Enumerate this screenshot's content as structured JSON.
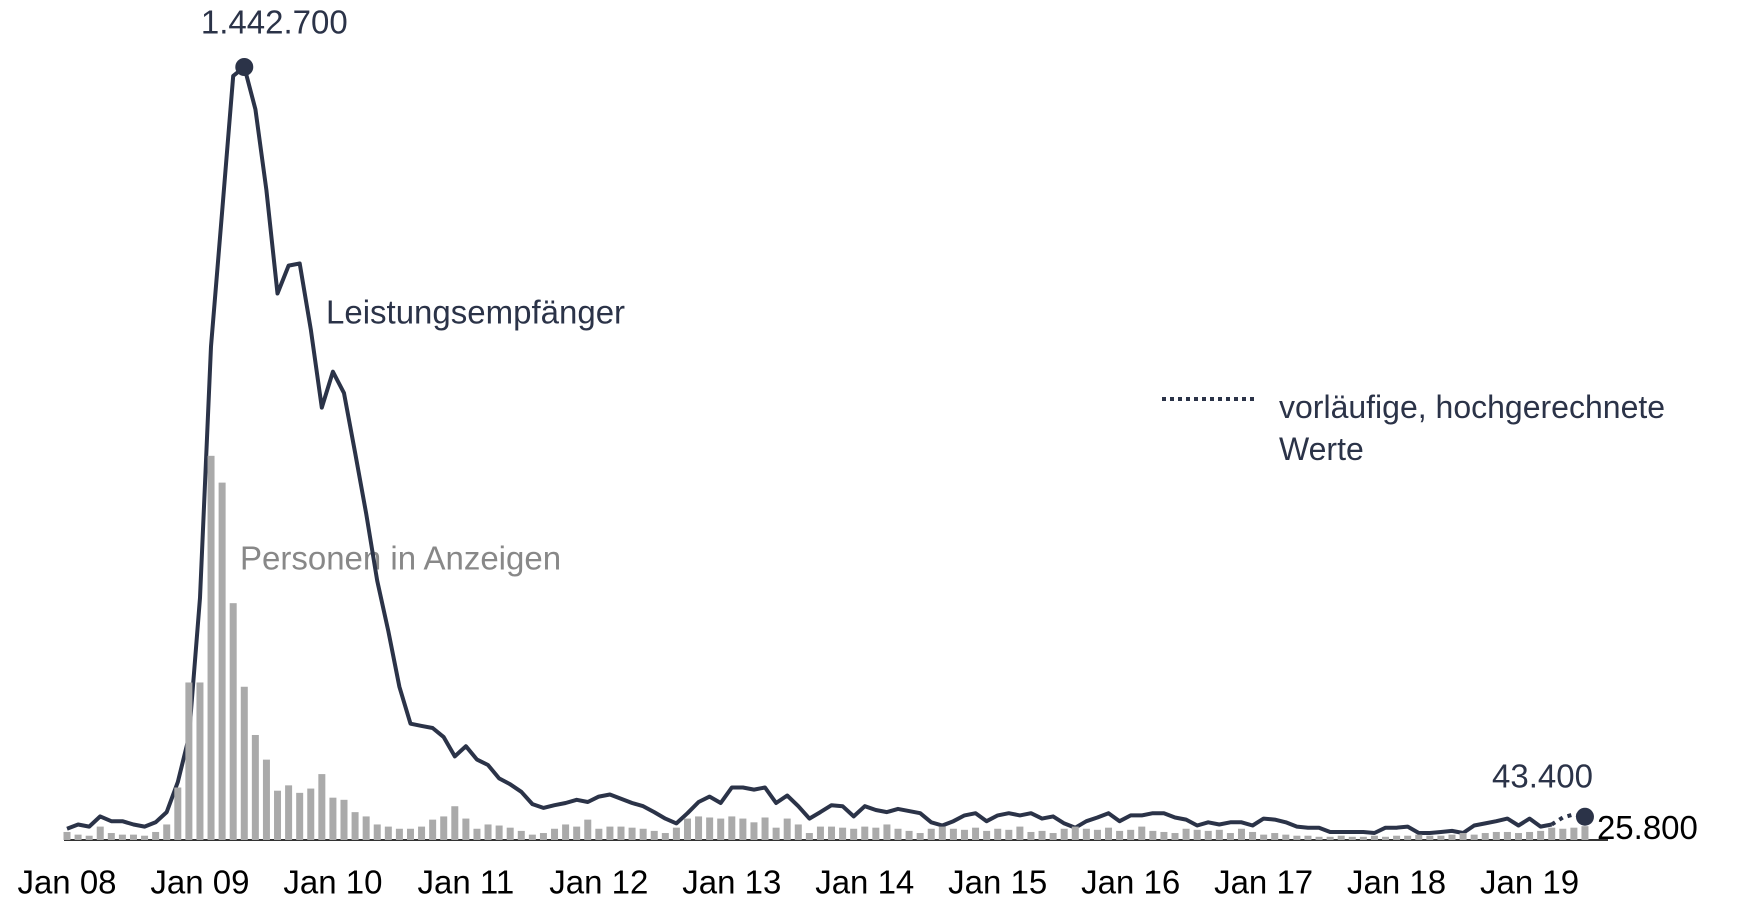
{
  "chart_data": {
    "type": "combo",
    "categories": [
      "Jan 08",
      null,
      null,
      null,
      null,
      null,
      null,
      null,
      null,
      null,
      null,
      null,
      "Jan 09",
      null,
      null,
      null,
      null,
      null,
      null,
      null,
      null,
      null,
      null,
      null,
      "Jan 10",
      null,
      null,
      null,
      null,
      null,
      null,
      null,
      null,
      null,
      null,
      null,
      "Jan 11",
      null,
      null,
      null,
      null,
      null,
      null,
      null,
      null,
      null,
      null,
      null,
      "Jan 12",
      null,
      null,
      null,
      null,
      null,
      null,
      null,
      null,
      null,
      null,
      null,
      "Jan 13",
      null,
      null,
      null,
      null,
      null,
      null,
      null,
      null,
      null,
      null,
      null,
      "Jan 14",
      null,
      null,
      null,
      null,
      null,
      null,
      null,
      null,
      null,
      null,
      null,
      "Jan 15",
      null,
      null,
      null,
      null,
      null,
      null,
      null,
      null,
      null,
      null,
      null,
      "Jan 16",
      null,
      null,
      null,
      null,
      null,
      null,
      null,
      null,
      null,
      null,
      null,
      "Jan 17",
      null,
      null,
      null,
      null,
      null,
      null,
      null,
      null,
      null,
      null,
      null,
      "Jan 18",
      null,
      null,
      null,
      null,
      null,
      null,
      null,
      null,
      null,
      null,
      null,
      "Jan 19",
      null,
      null,
      null,
      null,
      null
    ],
    "ylim": [
      0,
      1442700
    ],
    "series": [
      {
        "name": "Leistungsempfänger",
        "type": "line",
        "color": "#2b3348",
        "values": [
          21000,
          29000,
          25000,
          44000,
          35000,
          35000,
          29000,
          25000,
          33000,
          52000,
          108000,
          192000,
          452000,
          921000,
          1172000,
          1426000,
          1442700,
          1364000,
          1213000,
          1020000,
          1072000,
          1076000,
          953000,
          807000,
          874000,
          834000,
          723000,
          609000,
          484000,
          390000,
          286000,
          217000,
          213000,
          209000,
          192000,
          156000,
          175000,
          150000,
          140000,
          115000,
          104000,
          90000,
          67000,
          60000,
          65000,
          69000,
          75000,
          71000,
          81000,
          85000,
          77000,
          69000,
          63000,
          52000,
          40000,
          31000,
          50000,
          71000,
          81000,
          69000,
          98000,
          98000,
          94000,
          98000,
          69000,
          83000,
          63000,
          40000,
          52000,
          65000,
          63000,
          44000,
          63000,
          56000,
          52000,
          58000,
          54000,
          50000,
          33000,
          27000,
          35000,
          46000,
          50000,
          35000,
          46000,
          50000,
          46000,
          50000,
          40000,
          44000,
          31000,
          23000,
          35000,
          42000,
          50000,
          35000,
          46000,
          46000,
          50000,
          50000,
          42000,
          38000,
          27000,
          33000,
          29000,
          33000,
          33000,
          27000,
          40000,
          38000,
          33000,
          25000,
          23000,
          23000,
          15000,
          15000,
          15000,
          15000,
          13000,
          23000,
          23000,
          25000,
          13000,
          13000,
          15000,
          17000,
          13000,
          27000,
          31000,
          35000,
          40000,
          27000,
          40000,
          25000,
          29000,
          null,
          null,
          null
        ],
        "value_labels": {
          "16": "1.442.700"
        }
      },
      {
        "name": "vorläufige, hochgerechnete Werte",
        "type": "line",
        "style": "dotted",
        "color": "#2b3348",
        "values": [
          null,
          null,
          null,
          null,
          null,
          null,
          null,
          null,
          null,
          null,
          null,
          null,
          null,
          null,
          null,
          null,
          null,
          null,
          null,
          null,
          null,
          null,
          null,
          null,
          null,
          null,
          null,
          null,
          null,
          null,
          null,
          null,
          null,
          null,
          null,
          null,
          null,
          null,
          null,
          null,
          null,
          null,
          null,
          null,
          null,
          null,
          null,
          null,
          null,
          null,
          null,
          null,
          null,
          null,
          null,
          null,
          null,
          null,
          null,
          null,
          null,
          null,
          null,
          null,
          null,
          null,
          null,
          null,
          null,
          null,
          null,
          null,
          null,
          null,
          null,
          null,
          null,
          null,
          null,
          null,
          null,
          null,
          null,
          null,
          null,
          null,
          null,
          null,
          null,
          null,
          null,
          null,
          null,
          null,
          null,
          null,
          null,
          null,
          null,
          null,
          null,
          null,
          null,
          null,
          null,
          null,
          null,
          null,
          null,
          null,
          null,
          null,
          null,
          null,
          null,
          null,
          null,
          null,
          null,
          null,
          null,
          null,
          null,
          null,
          null,
          null,
          null,
          null,
          null,
          null,
          null,
          null,
          null,
          null,
          29000,
          42000,
          48000,
          43400
        ],
        "value_labels": {
          "137": "43.400"
        }
      },
      {
        "name": "Personen in Anzeigen",
        "type": "bar",
        "color": "#aaaaaa",
        "values": [
          15000,
          10000,
          8000,
          25000,
          13000,
          10000,
          10000,
          8000,
          15000,
          29000,
          98000,
          294000,
          294000,
          717000,
          667000,
          442000,
          286000,
          196000,
          150000,
          92000,
          102000,
          88000,
          96000,
          123000,
          79000,
          75000,
          52000,
          44000,
          29000,
          25000,
          21000,
          21000,
          25000,
          38000,
          44000,
          63000,
          40000,
          21000,
          29000,
          27000,
          23000,
          17000,
          10000,
          13000,
          21000,
          29000,
          25000,
          38000,
          21000,
          25000,
          25000,
          23000,
          21000,
          17000,
          13000,
          23000,
          40000,
          44000,
          42000,
          40000,
          44000,
          40000,
          33000,
          42000,
          23000,
          40000,
          29000,
          13000,
          25000,
          25000,
          23000,
          21000,
          25000,
          23000,
          29000,
          21000,
          17000,
          13000,
          21000,
          25000,
          21000,
          19000,
          23000,
          17000,
          21000,
          19000,
          25000,
          15000,
          17000,
          13000,
          21000,
          25000,
          21000,
          19000,
          23000,
          17000,
          19000,
          25000,
          17000,
          15000,
          13000,
          21000,
          19000,
          17000,
          19000,
          13000,
          21000,
          15000,
          10000,
          13000,
          10000,
          8000,
          8000,
          6000,
          6000,
          8000,
          6000,
          6000,
          8000,
          6000,
          8000,
          8000,
          10000,
          8000,
          8000,
          10000,
          13000,
          10000,
          13000,
          15000,
          15000,
          13000,
          15000,
          17000,
          23000,
          21000,
          23000,
          25800
        ],
        "value_labels": {
          "137": "25.800"
        }
      }
    ]
  }
}
